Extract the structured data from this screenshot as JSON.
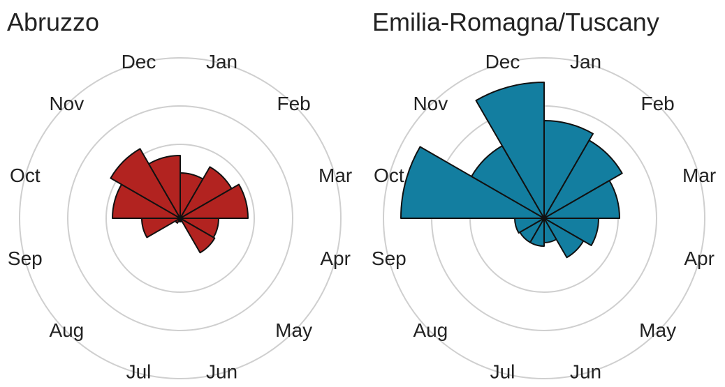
{
  "chart_data": [
    {
      "type": "rose",
      "title": "Abruzzo",
      "categories": [
        "Jan",
        "Feb",
        "Mar",
        "Apr",
        "May",
        "Jun",
        "Jul",
        "Aug",
        "Sep",
        "Oct",
        "Nov",
        "Dec"
      ],
      "values": [
        65,
        85,
        97,
        55,
        57,
        5,
        5,
        8,
        55,
        97,
        115,
        90
      ],
      "color": "#b22320",
      "ylim": [
        0,
        230
      ],
      "yticks": [
        106,
        161,
        230
      ],
      "grid": true
    },
    {
      "type": "rose",
      "title": "Emilia-Romagna/Tuscany",
      "categories": [
        "Jan",
        "Feb",
        "Mar",
        "Apr",
        "May",
        "Jun",
        "Jul",
        "Aug",
        "Sep",
        "Oct",
        "Nov",
        "Dec"
      ],
      "values": [
        140,
        129,
        108,
        78,
        65,
        35,
        40,
        40,
        42,
        205,
        120,
        195
      ],
      "color": "#137ea0",
      "ylim": [
        0,
        230
      ],
      "yticks": [
        106,
        161,
        230
      ],
      "grid": true
    }
  ]
}
